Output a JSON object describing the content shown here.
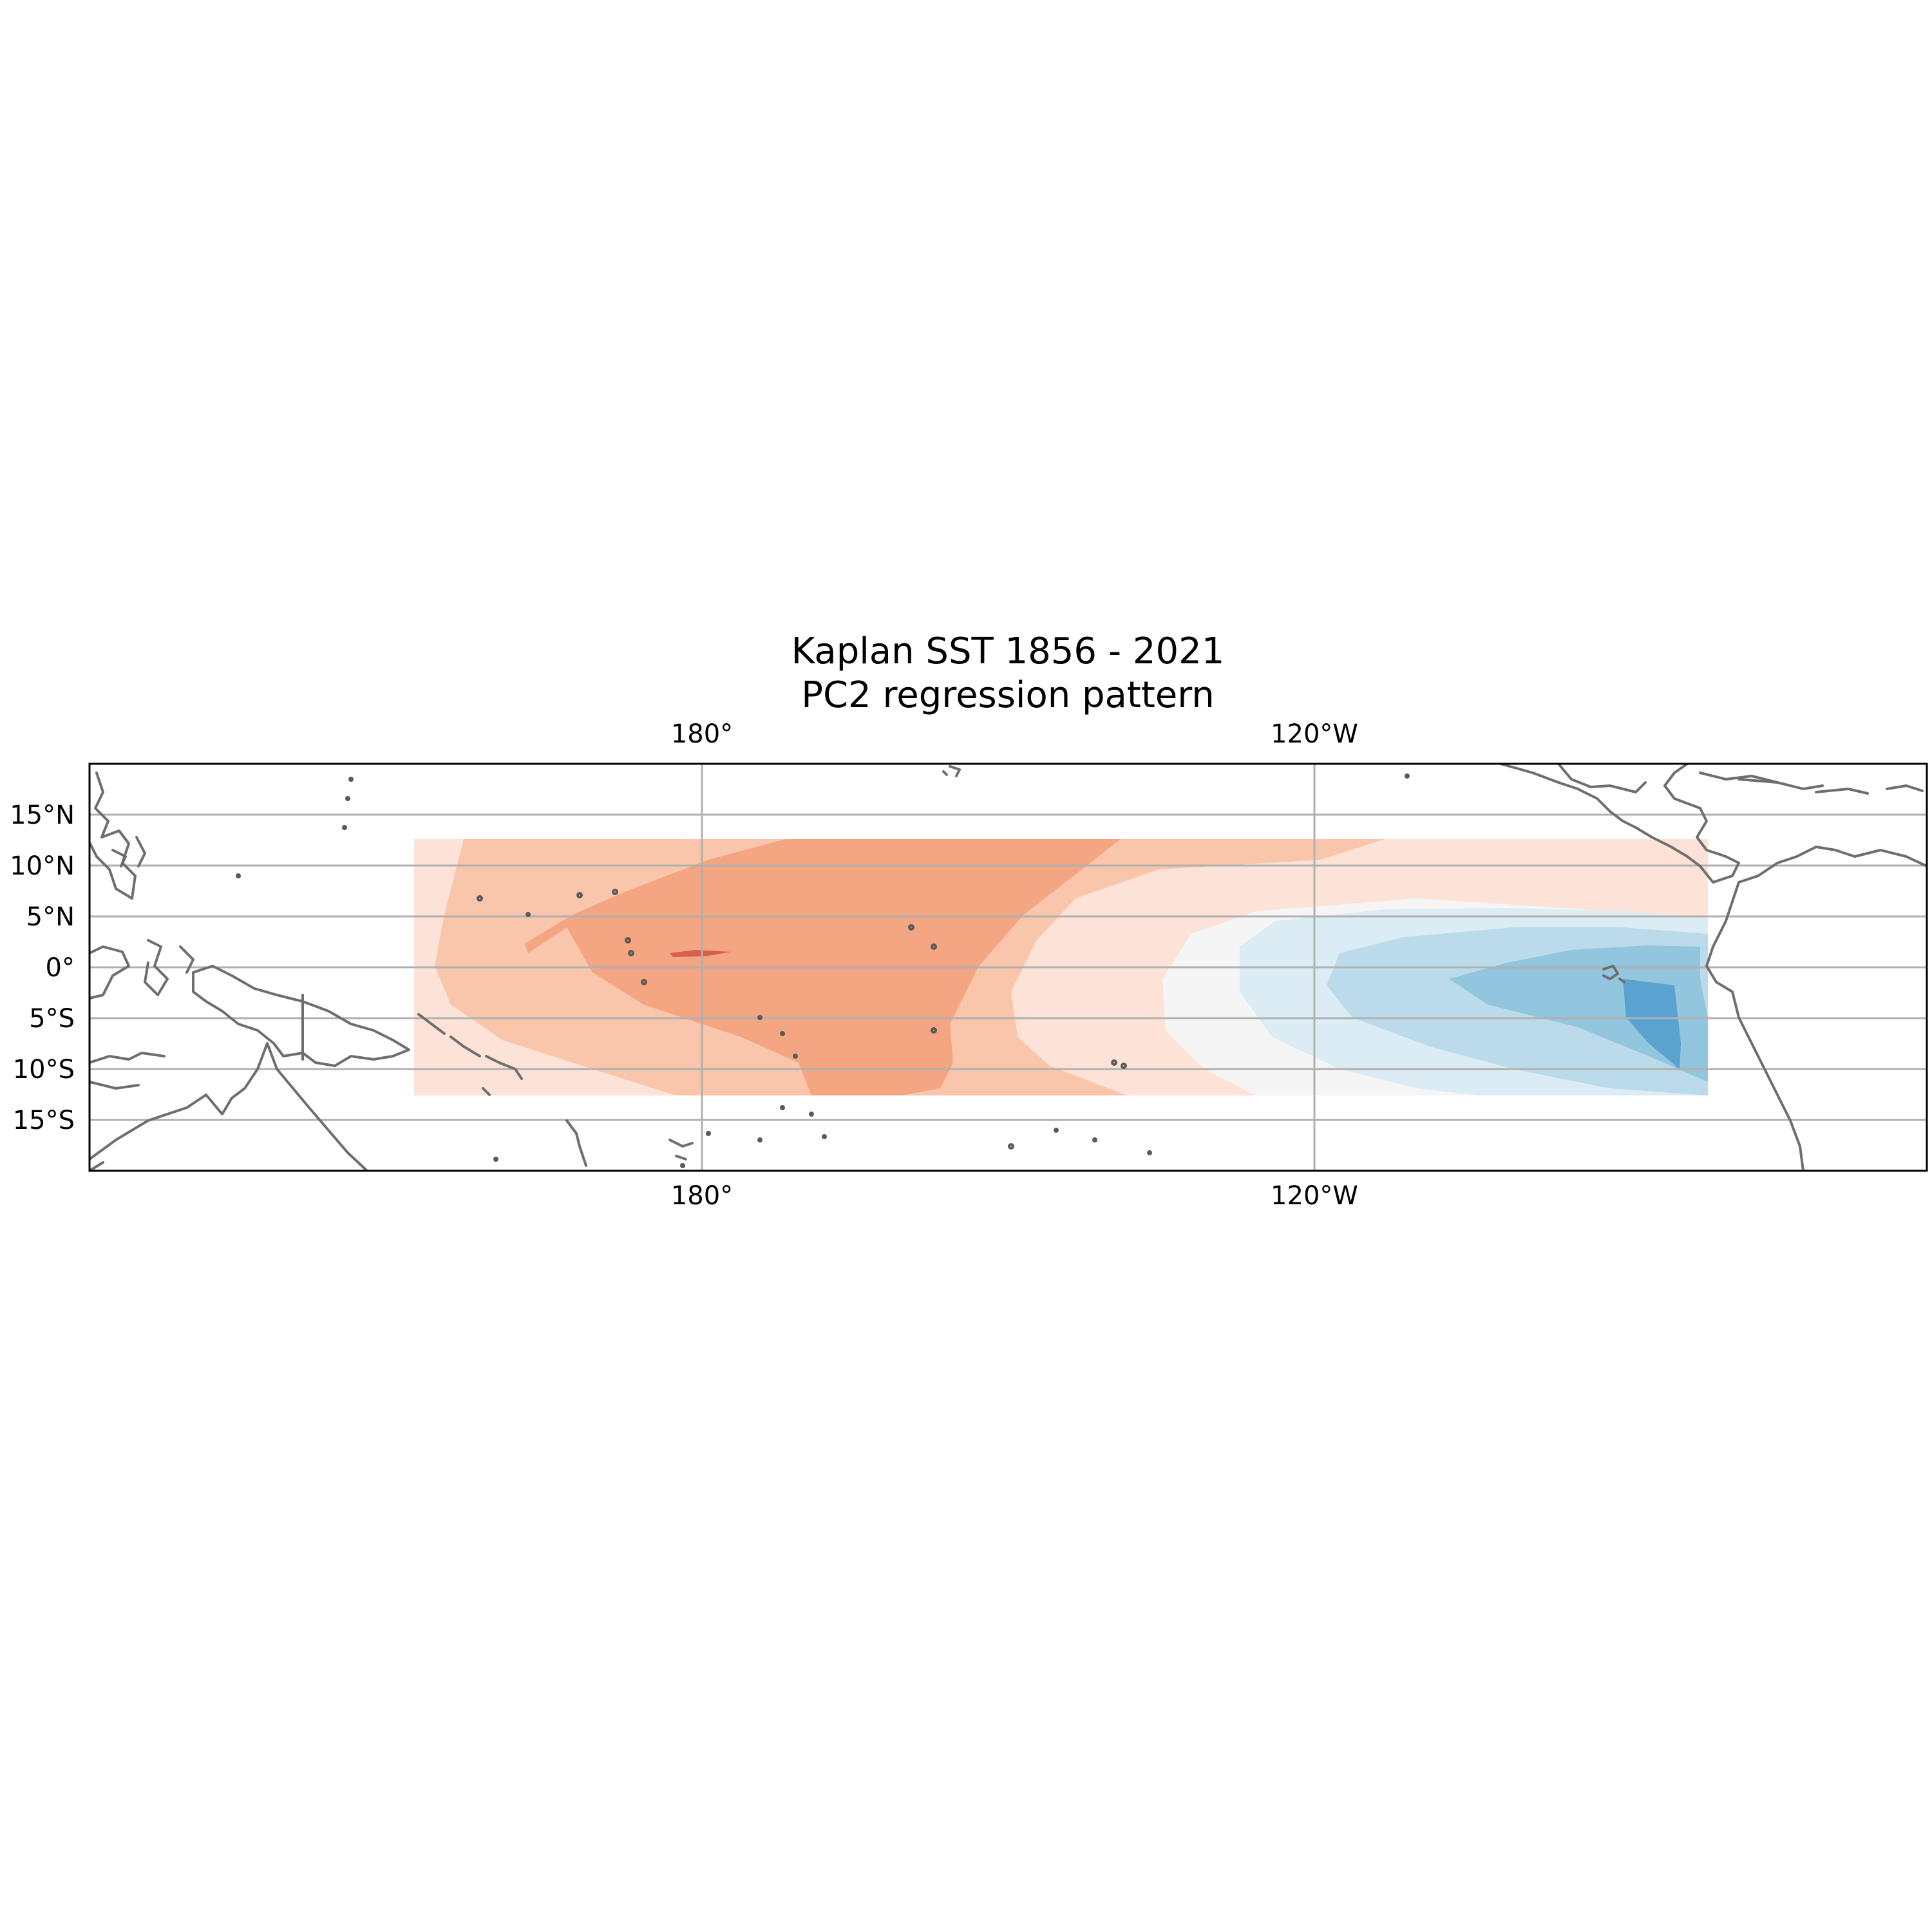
{
  "title": {
    "line1": "Kaplan SST 1856 - 2021",
    "line2": "PC2 regression pattern"
  },
  "map": {
    "projection": "PlateCarree (central longitude 180)",
    "lon_extent": [
      120,
      300
    ],
    "lat_extent": [
      -20,
      20
    ],
    "data_lon_extent": [
      152,
      279
    ],
    "data_lat_extent": [
      -12.5,
      12.5
    ],
    "gridlines": true,
    "lon_tick_labels": [
      {
        "lon": 180,
        "label": "180°"
      },
      {
        "lon": 240,
        "label": "120°W"
      }
    ],
    "lat_tick_labels": [
      {
        "lat": 15,
        "label": "15°N"
      },
      {
        "lat": 10,
        "label": "10°N"
      },
      {
        "lat": 5,
        "label": "5°N"
      },
      {
        "lat": 0,
        "label": "0°"
      },
      {
        "lat": -5,
        "label": "5°S"
      },
      {
        "lat": -10,
        "label": "10°S"
      },
      {
        "lat": -15,
        "label": "15°S"
      }
    ]
  },
  "chart_data": {
    "type": "heatmap",
    "field": "SST regression on PC2",
    "colormap": "RdBu_r",
    "pattern": "warm anomalies over the central Pacific, cool anomalies in the far eastern Pacific",
    "colors": {
      "red_strong": "#d6604d",
      "red_medium": "#f4a582",
      "red_light": "#f9c6ab",
      "red_pale": "#fde3d7",
      "neutral": "#f5f5f5",
      "blue_pale": "#dcecf4",
      "blue_light": "#bcdbea",
      "blue_medium": "#92c5de",
      "blue_strong": "#5aa2cf",
      "coastline": "#6e6e6e",
      "gridline": "#b0b0b0"
    }
  }
}
